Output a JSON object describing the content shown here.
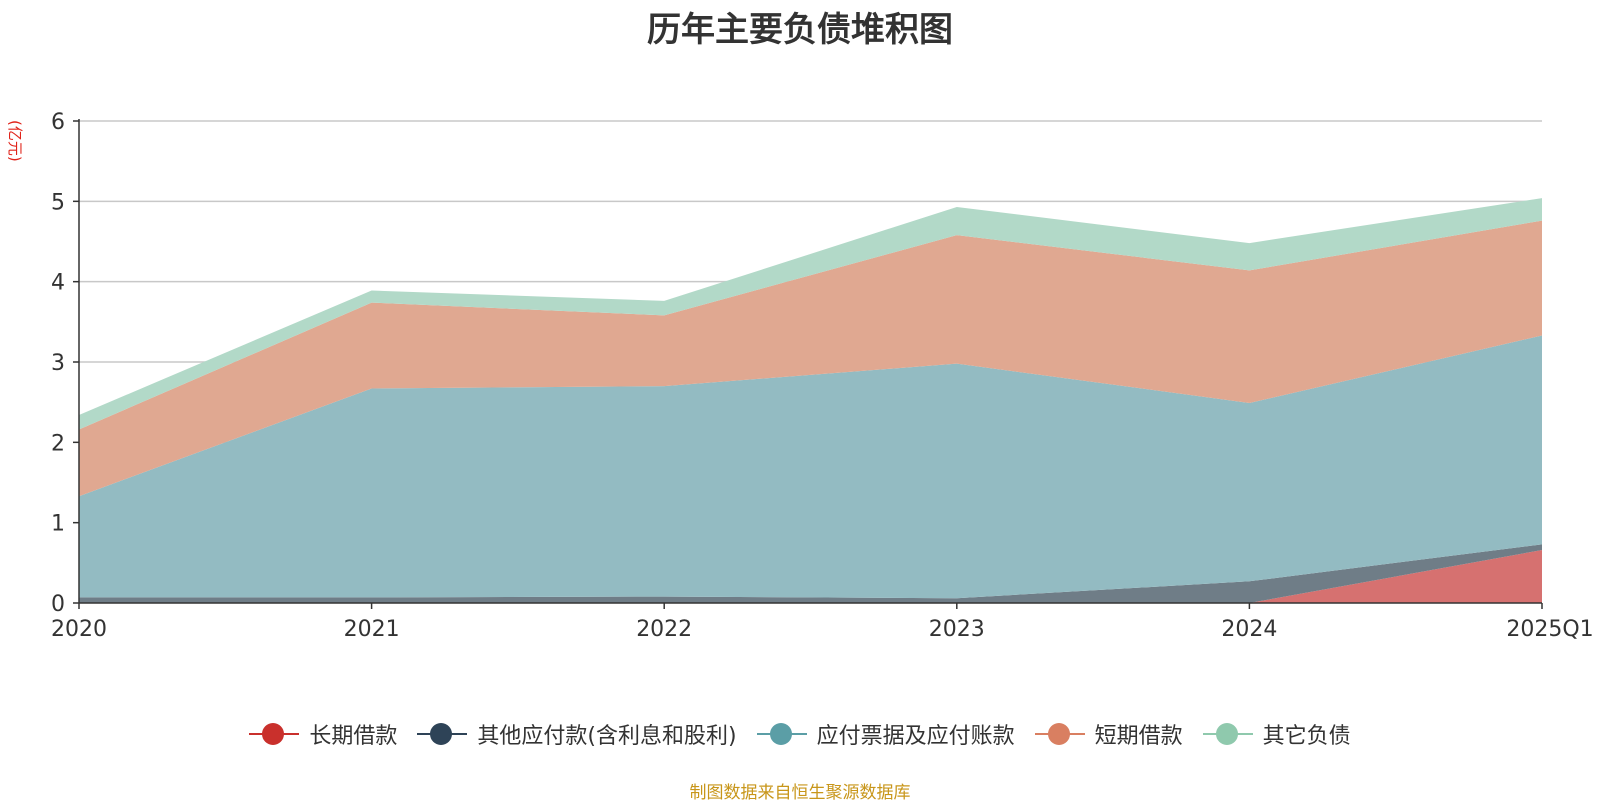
{
  "chart_data": {
    "type": "area",
    "stacked": true,
    "title": "历年主要负债堆积图",
    "yunit": "(亿元)",
    "categories": [
      "2020",
      "2021",
      "2022",
      "2023",
      "2024",
      "2025Q1"
    ],
    "ylim": [
      0,
      6
    ],
    "yticks": [
      0,
      1,
      2,
      3,
      4,
      5,
      6
    ],
    "grid": true,
    "legend_position": "bottom",
    "series": [
      {
        "name": "长期借款",
        "color": "#c9302c",
        "fill": "#d67170",
        "values": [
          0,
          0,
          0,
          0,
          0,
          0.66
        ]
      },
      {
        "name": "其他应付款(含利息和股利)",
        "color": "#2e4357",
        "fill": "#6f7d87",
        "values": [
          0.07,
          0.07,
          0.08,
          0.06,
          0.27,
          0.07
        ]
      },
      {
        "name": "应付票据及应付账款",
        "color": "#5b9ea6",
        "fill": "#93bbc2",
        "values": [
          1.26,
          2.6,
          2.62,
          2.92,
          2.22,
          2.6
        ]
      },
      {
        "name": "短期借款",
        "color": "#d97f61",
        "fill": "#e0a891",
        "values": [
          0.83,
          1.07,
          0.88,
          1.6,
          1.65,
          1.43
        ]
      },
      {
        "name": "其它负债",
        "color": "#8fc9ad",
        "fill": "#b2d9c8",
        "values": [
          0.18,
          0.15,
          0.18,
          0.35,
          0.34,
          0.28
        ]
      }
    ]
  },
  "source_text": "制图数据来自恒生聚源数据库"
}
